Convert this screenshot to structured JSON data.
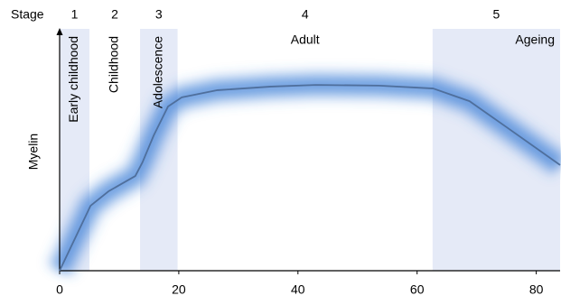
{
  "chart_data": {
    "type": "line",
    "y_label": "Myelin",
    "stage_header": "Stage",
    "stages": [
      {
        "number": "1",
        "label": "Early childhood",
        "start": 0,
        "end": 5,
        "shaded": true
      },
      {
        "number": "2",
        "label": "Childhood",
        "start": 5,
        "end": 13.5,
        "shaded": false
      },
      {
        "number": "3",
        "label": "Adolescence",
        "start": 13.5,
        "end": 19.8,
        "shaded": true
      },
      {
        "number": "4",
        "label": "Adult",
        "start": 19.8,
        "end": 62.6,
        "shaded": false
      },
      {
        "number": "5",
        "label": "Ageing",
        "start": 62.6,
        "end": 84,
        "shaded": true
      }
    ],
    "x": [
      0,
      5.2,
      8.2,
      12.7,
      13.9,
      15.8,
      18.2,
      20.5,
      26.5,
      35.5,
      43,
      53.6,
      62.7,
      68.8,
      74.8,
      84
    ],
    "values": [
      0,
      27.2,
      33.2,
      39.6,
      45.3,
      56.6,
      68.7,
      72.5,
      75.5,
      77,
      77.7,
      77.4,
      76.2,
      70.9,
      60.4,
      44.2
    ],
    "color": "#4f6f9c",
    "band_color": "#3d7fd6",
    "shade_color": "#e5eaf7",
    "xlim": [
      0,
      84
    ],
    "ylim": [
      0,
      100
    ],
    "xticks": [
      0,
      20,
      40,
      60,
      80
    ]
  }
}
